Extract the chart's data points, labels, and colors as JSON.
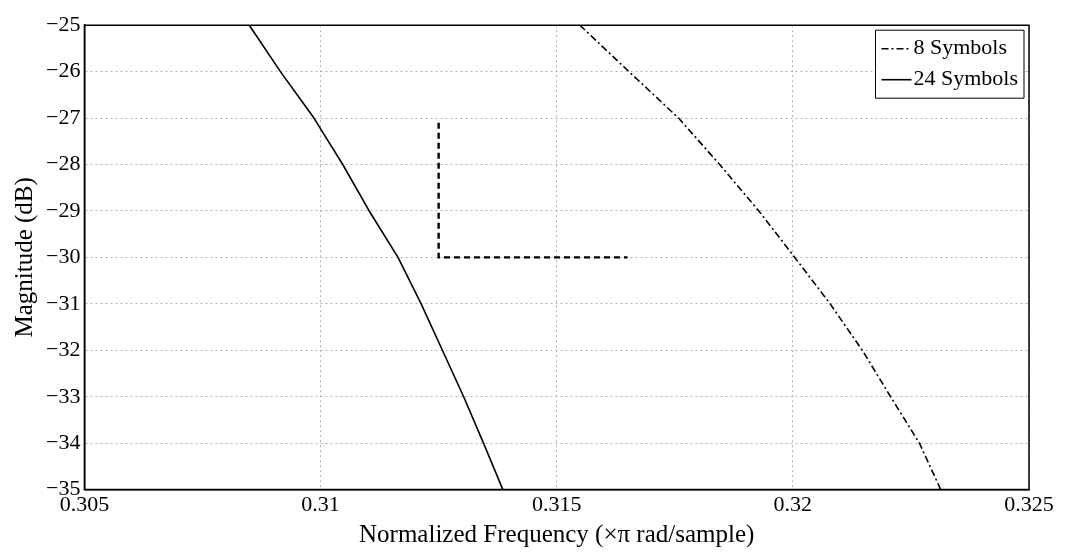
{
  "chart_data": {
    "type": "line",
    "xlabel": "Normalized Frequency (×π rad/sample)",
    "ylabel": "Magnitude (dB)",
    "xlim": [
      0.305,
      0.325
    ],
    "xticks": [
      0.305,
      0.31,
      0.315,
      0.32,
      0.325
    ],
    "ylim": [
      -35,
      -25
    ],
    "yticks": [
      -35,
      -34,
      -33,
      -32,
      -31,
      -30,
      -29,
      -28,
      -27,
      -26,
      -25
    ],
    "grid": true,
    "legend": "top right",
    "marker": "none",
    "series": [
      {
        "name": "8 Symbols",
        "color": "#000000",
        "line_style": "dashdot",
        "x": [
          0.31549,
          0.31653,
          0.31758,
          0.31845,
          0.31928,
          0.32004,
          0.32079,
          0.32147,
          0.32207,
          0.32268,
          0.32313
        ],
        "values": [
          -25,
          -26,
          -27,
          -28,
          -29,
          -30,
          -31,
          -32,
          -33,
          -34,
          -35
        ]
      },
      {
        "name": "24 Symbols",
        "color": "#000000",
        "line_style": "solid",
        "x": [
          0.30849,
          0.30915,
          0.30986,
          0.31047,
          0.31103,
          0.31164,
          0.31213,
          0.31258,
          0.31303,
          0.31345,
          0.31386
        ],
        "values": [
          -25,
          -26,
          -27,
          -28,
          -29,
          -30,
          -31,
          -32,
          -33,
          -34,
          -35
        ]
      },
      {
        "color": "#000000",
        "line_style": "dashed",
        "x": [
          0.3125,
          0.3125,
          0.3165
        ],
        "values": [
          -27.1,
          -30,
          -30
        ]
      }
    ]
  }
}
